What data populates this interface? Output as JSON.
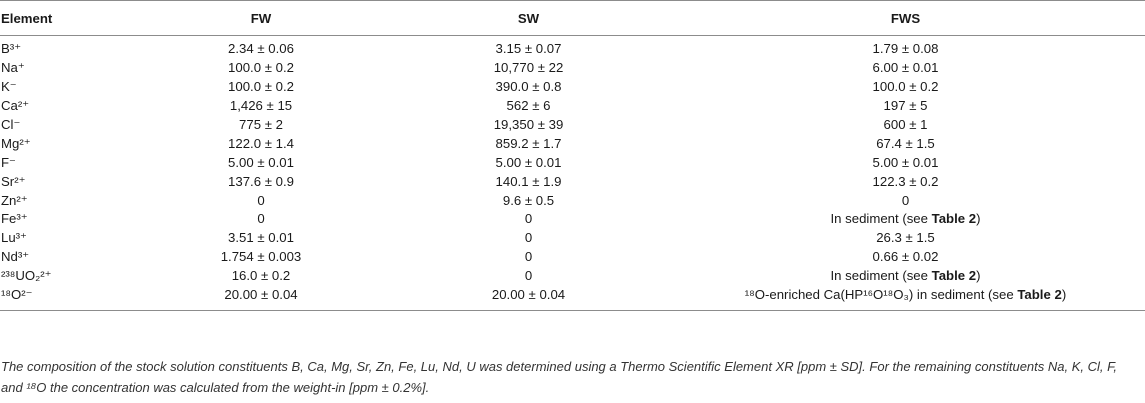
{
  "table": {
    "header": [
      "Element",
      "FW",
      "SW",
      "FWS"
    ],
    "rows": [
      [
        "B³⁺",
        "2.34 ± 0.06",
        "3.15 ± 0.07",
        "1.79 ± 0.08"
      ],
      [
        "Na⁺",
        "100.0 ± 0.2",
        "10,770 ± 22",
        "6.00 ± 0.01"
      ],
      [
        "K⁻",
        "100.0 ± 0.2",
        "390.0 ± 0.8",
        "100.0 ± 0.2"
      ],
      [
        "Ca²⁺",
        "1,426 ± 15",
        "562 ± 6",
        "197 ± 5"
      ],
      [
        "Cl⁻",
        "775 ± 2",
        "19,350 ± 39",
        "600 ± 1"
      ],
      [
        "Mg²⁺",
        "122.0 ± 1.4",
        "859.2 ± 1.7",
        "67.4 ± 1.5"
      ],
      [
        "F⁻",
        "5.00 ± 0.01",
        "5.00 ± 0.01",
        "5.00 ± 0.01"
      ],
      [
        "Sr²⁺",
        "137.6 ± 0.9",
        "140.1 ± 1.9",
        "122.3 ± 0.2"
      ],
      [
        "Zn²⁺",
        "0",
        "9.6 ± 0.5",
        "0"
      ],
      [
        "Fe³⁺",
        "0",
        "0",
        {
          "text": "In sediment (see ",
          "ref": "Table 2",
          "after": ")"
        }
      ],
      [
        "Lu³⁺",
        "3.51 ± 0.01",
        "0",
        "26.3 ± 1.5"
      ],
      [
        "Nd³⁺",
        "1.754 ± 0.003",
        "0",
        "0.66 ± 0.02"
      ],
      [
        "²³⁸UO₂²⁺",
        "16.0 ± 0.2",
        "0",
        {
          "text": "In sediment (see ",
          "ref": "Table 2",
          "after": ")"
        }
      ],
      [
        "¹⁸O²⁻",
        "20.00 ± 0.04",
        "20.00 ± 0.04",
        {
          "text": "¹⁸O-enriched Ca(HP¹⁶O¹⁸O₃) in sediment (see ",
          "ref": "Table 2",
          "after": ")"
        }
      ]
    ]
  },
  "footnote": "The composition of the stock solution constituents B, Ca, Mg, Sr, Zn, Fe, Lu, Nd, U was determined using a Thermo Scientific Element XR [ppm ± SD]. For the remaining constituents Na, K, Cl, F, and ¹⁸O the concentration was calculated from the weight-in [ppm ± 0.2%]."
}
